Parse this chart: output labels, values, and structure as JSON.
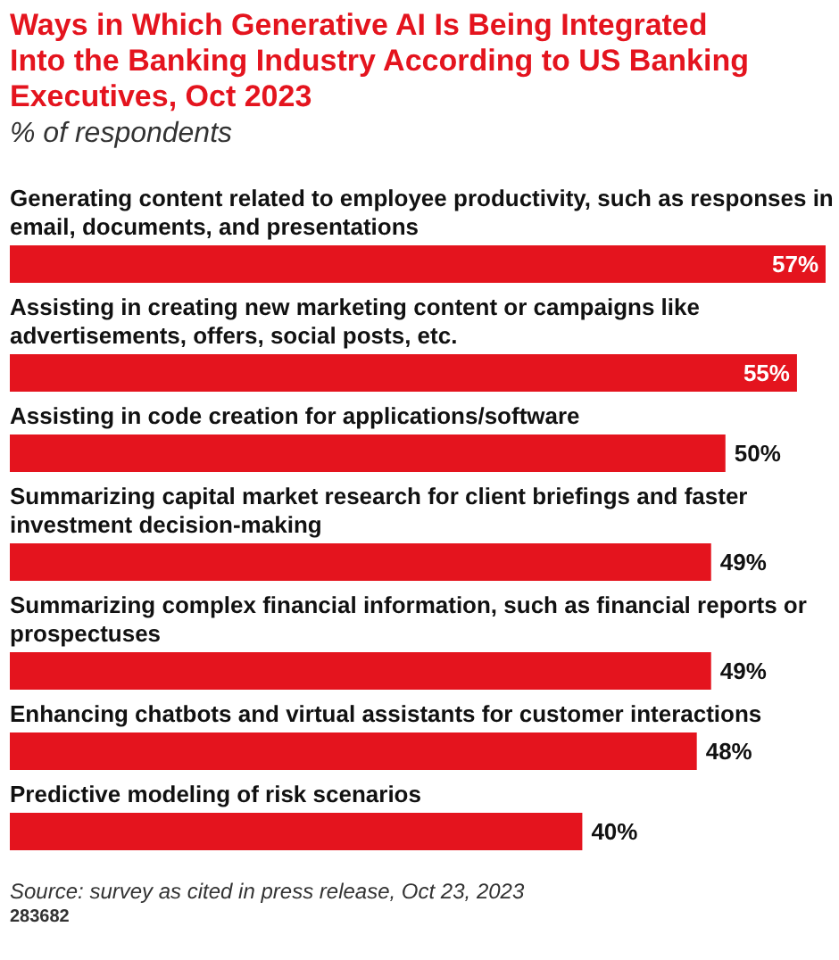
{
  "chart_data": {
    "type": "bar",
    "orientation": "horizontal",
    "title": "Ways in Which Generative AI Is Being Integrated Into the Banking Industry According to US Banking Executives, Oct 2023",
    "subtitle": "% of respondents",
    "categories": [
      "Generating content related to employee productivity, such as responses in email, documents, and presentations",
      "Assisting in creating new marketing content or campaigns like advertisements, offers, social posts, etc.",
      "Assisting in code creation for applications/software",
      "Summarizing capital market research for client briefings and faster investment decision-making",
      "Summarizing complex financial information, such as financial reports or prospectuses",
      "Enhancing chatbots and virtual assistants for customer interactions",
      "Predictive modeling of risk scenarios"
    ],
    "values": [
      57,
      55,
      50,
      49,
      49,
      48,
      40
    ],
    "color": "#e4141e",
    "value_labels": [
      "57%",
      "55%",
      "50%",
      "49%",
      "49%",
      "48%",
      "40%"
    ],
    "annotations": [
      "Source: survey as cited in press release, Oct 23, 2023",
      "283682"
    ]
  }
}
